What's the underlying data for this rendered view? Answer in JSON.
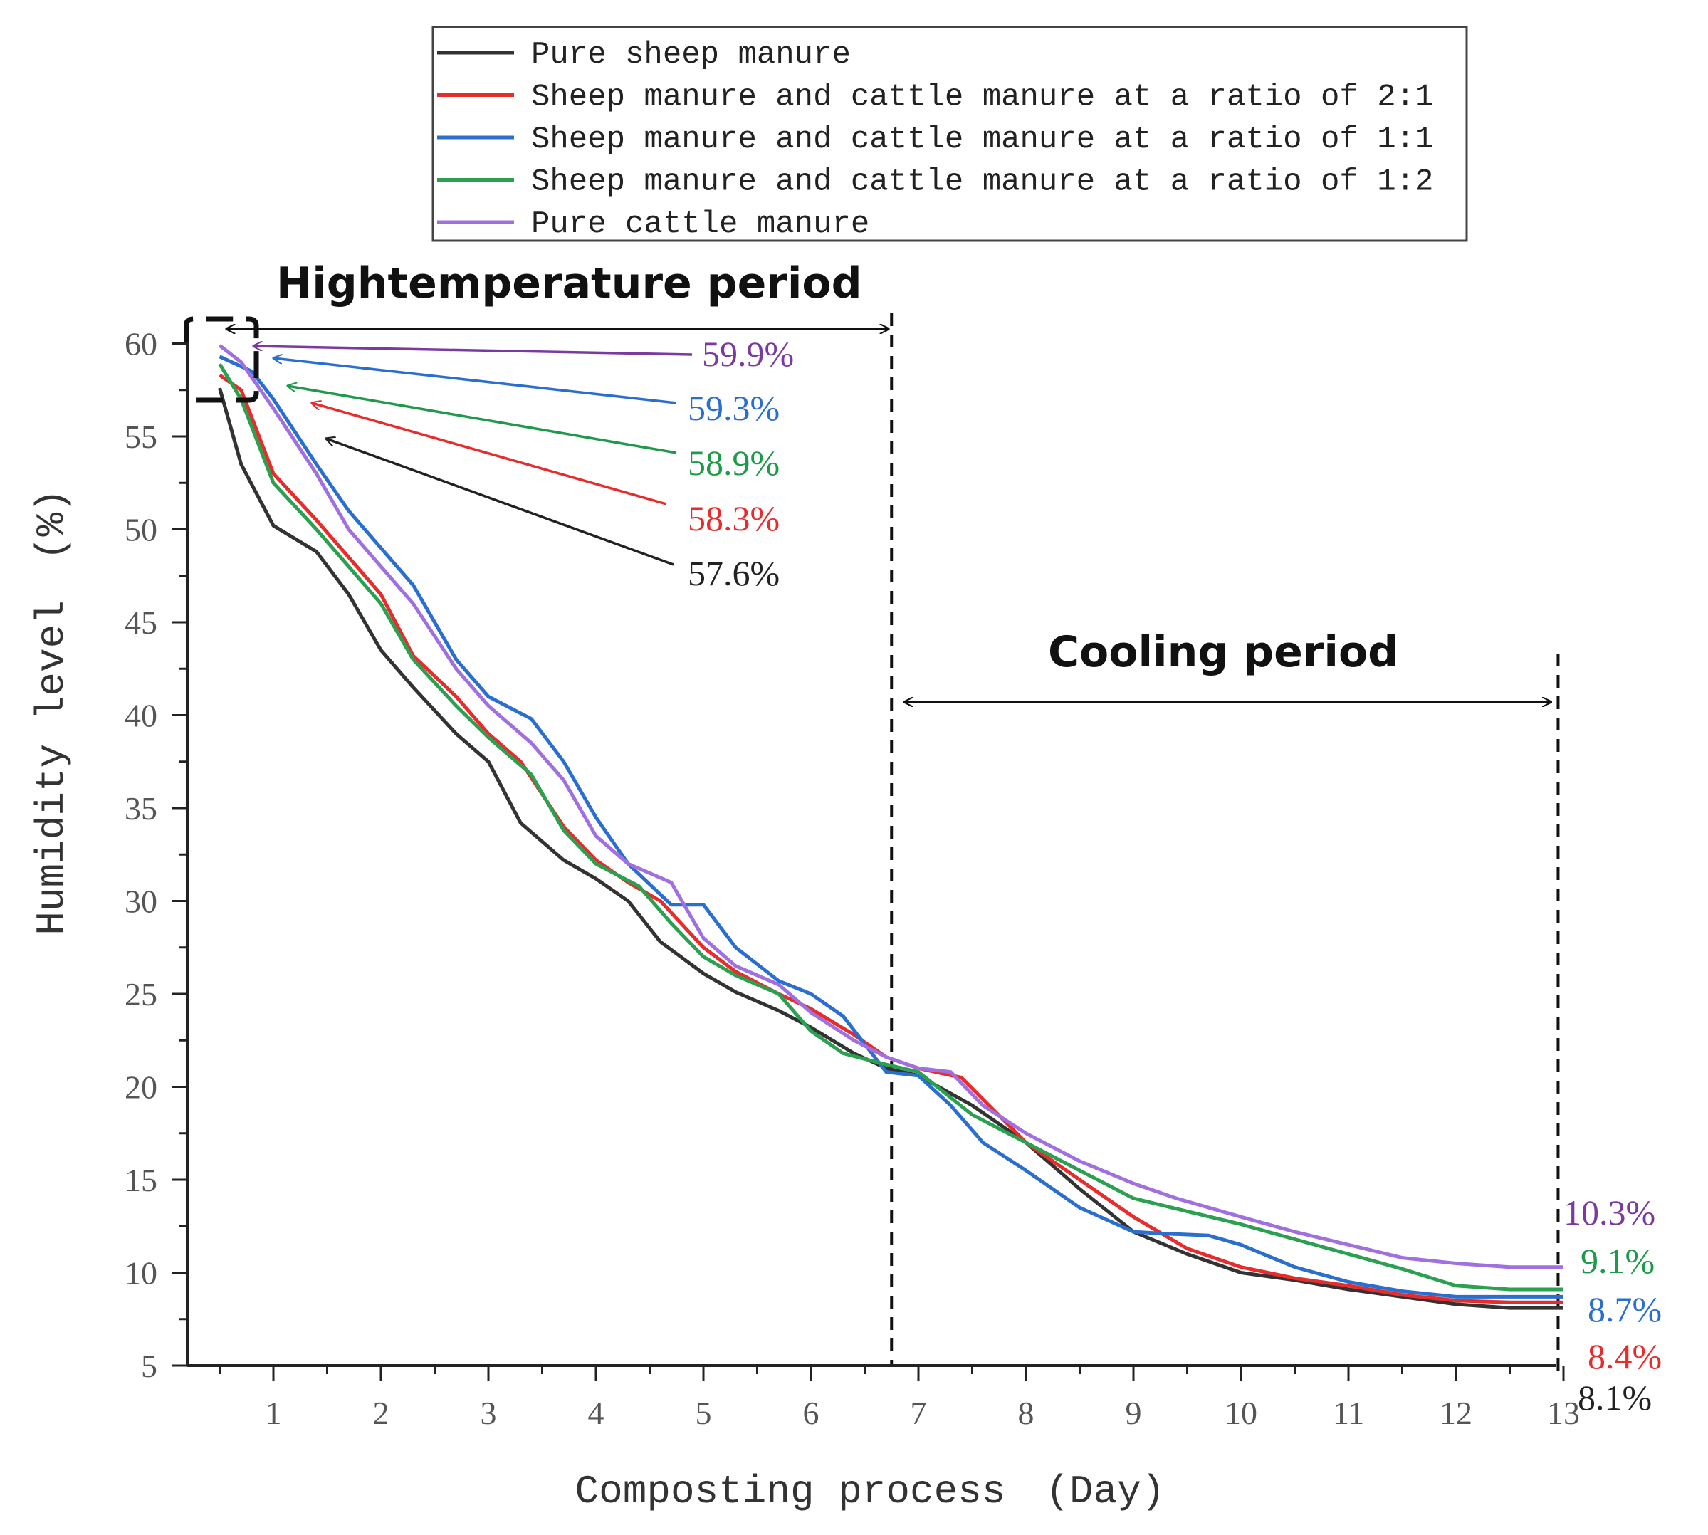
{
  "chart_data": {
    "type": "line",
    "xlabel": "Composting process　(Day)",
    "ylabel": "Humidity level　(%)",
    "xlim": [
      0.35,
      13
    ],
    "ylim": [
      5,
      60.5
    ],
    "xticks": [
      1,
      2,
      3,
      4,
      5,
      6,
      7,
      8,
      9,
      10,
      11,
      12,
      13
    ],
    "yticks": [
      5,
      10,
      15,
      20,
      25,
      30,
      35,
      40,
      45,
      50,
      55,
      60
    ],
    "legend_position": "top-center",
    "series": [
      {
        "name": "Pure sheep manure",
        "color": "#333333",
        "x": [
          0.5,
          0.7,
          1.0,
          1.4,
          1.7,
          2.0,
          2.3,
          2.7,
          3.0,
          3.3,
          3.7,
          4.0,
          4.3,
          4.6,
          5.0,
          5.3,
          5.7,
          6.0,
          6.4,
          6.7,
          7.0,
          7.5,
          8.0,
          8.5,
          9.0,
          9.5,
          10.0,
          10.5,
          11.0,
          11.5,
          12.0,
          12.5,
          13.0
        ],
        "y": [
          57.6,
          53.5,
          50.2,
          48.8,
          46.5,
          43.5,
          41.5,
          39.0,
          37.5,
          34.2,
          32.2,
          31.2,
          30.0,
          27.8,
          26.1,
          25.1,
          24.1,
          23.2,
          21.8,
          21.0,
          20.6,
          19.0,
          17.0,
          14.5,
          12.2,
          11.0,
          10.0,
          9.6,
          9.1,
          8.7,
          8.3,
          8.1,
          8.1
        ]
      },
      {
        "name": "Sheep manure and cattle manure at a ratio of 2:1",
        "color": "#e82c2c",
        "x": [
          0.5,
          0.7,
          1.0,
          1.4,
          1.7,
          2.0,
          2.3,
          2.7,
          3.0,
          3.3,
          3.7,
          4.0,
          4.3,
          4.6,
          5.0,
          5.3,
          5.7,
          6.0,
          6.4,
          6.7,
          7.0,
          7.4,
          8.0,
          8.5,
          9.0,
          9.5,
          10.0,
          10.5,
          11.0,
          11.5,
          12.0,
          12.5,
          13.0
        ],
        "y": [
          58.3,
          57.5,
          53.0,
          50.5,
          48.5,
          46.5,
          43.2,
          41.0,
          39.0,
          37.5,
          34.0,
          32.2,
          31.0,
          30.0,
          27.5,
          26.2,
          25.0,
          24.2,
          22.8,
          21.6,
          21.0,
          20.5,
          17.0,
          15.0,
          13.0,
          11.3,
          10.3,
          9.7,
          9.3,
          8.8,
          8.5,
          8.4,
          8.4
        ]
      },
      {
        "name": "Sheep manure and cattle manure at a ratio of 1:1",
        "color": "#2a6fd0",
        "x": [
          0.5,
          0.8,
          1.0,
          1.4,
          1.7,
          2.0,
          2.3,
          2.7,
          3.0,
          3.4,
          3.7,
          4.0,
          4.3,
          4.7,
          5.0,
          5.3,
          5.7,
          6.0,
          6.3,
          6.7,
          7.0,
          7.3,
          7.6,
          8.0,
          8.5,
          9.0,
          9.3,
          9.7,
          10.0,
          10.5,
          11.0,
          11.5,
          12.0,
          12.5,
          13.0
        ],
        "y": [
          59.3,
          58.5,
          57.0,
          53.5,
          51.0,
          49.0,
          47.0,
          43.0,
          41.0,
          39.8,
          37.5,
          34.5,
          32.0,
          29.8,
          29.8,
          27.5,
          25.7,
          25.0,
          23.8,
          20.8,
          20.6,
          19.0,
          17.0,
          15.5,
          13.5,
          12.2,
          12.1,
          12.0,
          11.5,
          10.3,
          9.5,
          9.0,
          8.7,
          8.7,
          8.7
        ]
      },
      {
        "name": "Sheep manure and cattle manure at a ratio of 1:2",
        "color": "#2aa050",
        "x": [
          0.5,
          0.7,
          1.0,
          1.4,
          1.7,
          2.0,
          2.3,
          2.7,
          3.0,
          3.4,
          3.7,
          4.0,
          4.4,
          4.7,
          5.0,
          5.3,
          5.7,
          6.0,
          6.3,
          6.7,
          7.0,
          7.5,
          8.0,
          8.5,
          9.0,
          9.5,
          10.0,
          10.5,
          11.0,
          11.5,
          12.0,
          12.5,
          13.0
        ],
        "y": [
          58.9,
          57.0,
          52.5,
          50.0,
          48.0,
          46.0,
          43.0,
          40.5,
          38.8,
          36.8,
          33.8,
          32.0,
          30.8,
          28.8,
          27.0,
          26.0,
          25.0,
          23.0,
          21.8,
          21.2,
          20.8,
          18.5,
          17.0,
          15.5,
          14.0,
          13.3,
          12.6,
          11.8,
          11.0,
          10.2,
          9.3,
          9.1,
          9.1
        ]
      },
      {
        "name": "Pure cattle manure",
        "color": "#a070e0",
        "x": [
          0.5,
          0.7,
          1.0,
          1.4,
          1.7,
          2.0,
          2.3,
          2.7,
          3.0,
          3.4,
          3.7,
          4.0,
          4.3,
          4.7,
          5.0,
          5.3,
          5.7,
          6.0,
          6.4,
          6.7,
          7.0,
          7.3,
          7.6,
          8.0,
          8.5,
          9.0,
          9.4,
          10.0,
          10.5,
          11.0,
          11.5,
          12.0,
          12.5,
          13.0
        ],
        "y": [
          59.9,
          59.0,
          56.5,
          53.0,
          50.0,
          48.0,
          46.0,
          42.5,
          40.5,
          38.5,
          36.5,
          33.5,
          32.0,
          31.0,
          28.0,
          26.5,
          25.5,
          24.0,
          22.5,
          21.6,
          21.0,
          20.8,
          19.0,
          17.5,
          16.0,
          14.8,
          14.0,
          13.0,
          12.2,
          11.5,
          10.8,
          10.5,
          10.3,
          10.3
        ]
      }
    ],
    "start_labels": [
      {
        "text": "59.9%",
        "color": "#7a3aa0"
      },
      {
        "text": "59.3%",
        "color": "#2a6fd0"
      },
      {
        "text": "58.9%",
        "color": "#1f9a4a"
      },
      {
        "text": "58.3%",
        "color": "#e82c2c"
      },
      {
        "text": "57.6%",
        "color": "#222222"
      }
    ],
    "end_labels": [
      {
        "text": "10.3%",
        "color": "#7a3aa0"
      },
      {
        "text": "9.1%",
        "color": "#1f9a4a"
      },
      {
        "text": "8.7%",
        "color": "#2a6fd0"
      },
      {
        "text": "8.4%",
        "color": "#e82c2c"
      },
      {
        "text": "8.1%",
        "color": "#222222"
      }
    ],
    "periods": [
      {
        "title": "Hightemperature period",
        "x_start": 0.35,
        "x_end": 6.75
      },
      {
        "title": "Cooling period",
        "x_start": 6.75,
        "x_end": 12.95
      }
    ]
  }
}
